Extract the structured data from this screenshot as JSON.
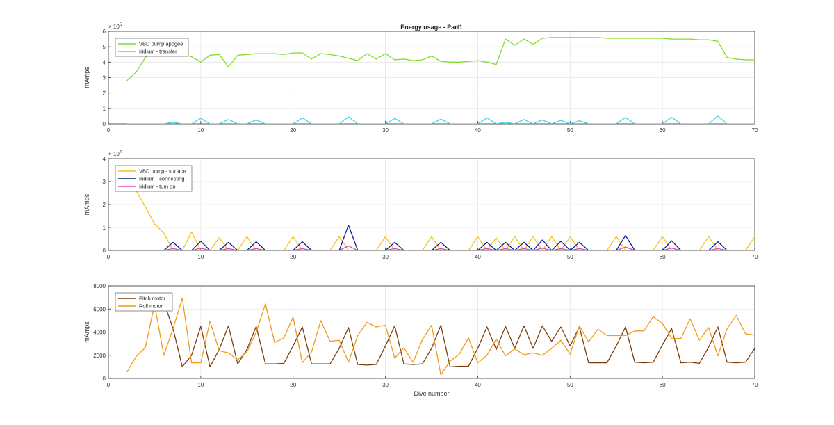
{
  "chart_data": [
    {
      "type": "line",
      "title": "Energy usage - Part1",
      "xlabel": "",
      "ylabel": "mAmps",
      "xlim": [
        0,
        70
      ],
      "ylim": [
        0,
        6
      ],
      "y_multiplier": "× 10^5",
      "xticks": [
        0,
        10,
        20,
        30,
        40,
        50,
        60,
        70
      ],
      "yticks": [
        0,
        1,
        2,
        3,
        4,
        5,
        6
      ],
      "grid": true,
      "legend_position": "top-left",
      "series": [
        {
          "name": "VBD pump apogee",
          "color": "#7fdc2a",
          "x": [
            2,
            3,
            4,
            5,
            6,
            7,
            8,
            9,
            10,
            11,
            12,
            13,
            14,
            15,
            16,
            17,
            18,
            19,
            20,
            21,
            22,
            23,
            24,
            25,
            26,
            27,
            28,
            29,
            30,
            31,
            32,
            33,
            34,
            35,
            36,
            37,
            38,
            39,
            40,
            41,
            42,
            43,
            44,
            45,
            46,
            47,
            48,
            49,
            50,
            51,
            52,
            53,
            54,
            55,
            56,
            57,
            58,
            59,
            60,
            61,
            62,
            63,
            64,
            65,
            66,
            67,
            68,
            69,
            70
          ],
          "y": [
            2.8,
            3.35,
            4.3,
            5.0,
            4.8,
            4.7,
            4.55,
            4.35,
            4.0,
            4.45,
            4.5,
            3.7,
            4.45,
            4.5,
            4.55,
            4.55,
            4.55,
            4.5,
            4.6,
            4.6,
            4.2,
            4.55,
            4.5,
            4.4,
            4.25,
            4.1,
            4.55,
            4.2,
            4.55,
            4.15,
            4.2,
            4.1,
            4.15,
            4.4,
            4.05,
            4.0,
            4.0,
            4.05,
            4.1,
            4.0,
            3.85,
            5.5,
            5.1,
            5.5,
            5.15,
            5.55,
            5.6,
            5.6,
            5.6,
            5.6,
            5.6,
            5.6,
            5.55,
            5.55,
            5.55,
            5.55,
            5.55,
            5.55,
            5.55,
            5.5,
            5.5,
            5.5,
            5.45,
            5.45,
            5.35,
            4.3,
            4.2,
            4.15,
            4.15
          ]
        },
        {
          "name": "Iridium - transfer",
          "color": "#3fd3e6",
          "x": [
            2,
            6,
            7,
            8,
            9,
            10,
            11,
            12,
            13,
            14,
            15,
            16,
            17,
            20,
            21,
            22,
            25,
            26,
            27,
            30,
            31,
            32,
            35,
            36,
            37,
            40,
            41,
            42,
            43,
            44,
            45,
            46,
            47,
            48,
            49,
            50,
            51,
            52,
            55,
            56,
            57,
            60,
            61,
            62,
            65,
            66,
            67,
            70
          ],
          "y": [
            0,
            0,
            0.1,
            0,
            0,
            0.35,
            0,
            0,
            0.28,
            0,
            0,
            0.25,
            0,
            0,
            0.38,
            0,
            0,
            0.45,
            0,
            0,
            0.35,
            0,
            0,
            0.3,
            0,
            0,
            0.38,
            0,
            0.1,
            0,
            0.28,
            0,
            0.25,
            0,
            0.22,
            0,
            0.2,
            0,
            0,
            0.4,
            0,
            0,
            0.42,
            0,
            0,
            0.5,
            0,
            0
          ]
        }
      ]
    },
    {
      "type": "line",
      "title": "",
      "xlabel": "",
      "ylabel": "mAmps",
      "xlim": [
        0,
        70
      ],
      "ylim": [
        0,
        4
      ],
      "y_multiplier": "× 10^4",
      "xticks": [
        0,
        10,
        20,
        30,
        40,
        50,
        60,
        70
      ],
      "yticks": [
        0,
        1,
        2,
        3,
        4
      ],
      "grid": true,
      "legend_position": "top-left",
      "series": [
        {
          "name": "VBD pump - surface",
          "color": "#f2c31a",
          "x": [
            2,
            3,
            4,
            5,
            6,
            7,
            8,
            9,
            10,
            11,
            12,
            13,
            14,
            15,
            16,
            17,
            18,
            19,
            20,
            21,
            22,
            23,
            24,
            25,
            26,
            27,
            28,
            29,
            30,
            31,
            32,
            33,
            34,
            35,
            36,
            37,
            38,
            39,
            40,
            41,
            42,
            43,
            44,
            45,
            46,
            47,
            48,
            49,
            50,
            51,
            52,
            53,
            54,
            55,
            56,
            57,
            58,
            59,
            60,
            61,
            62,
            63,
            64,
            65,
            66,
            67,
            68,
            69,
            70
          ],
          "y": [
            3.3,
            2.6,
            1.9,
            1.15,
            0.75,
            0,
            0,
            0.8,
            0,
            0,
            0.55,
            0,
            0,
            0.6,
            0,
            0,
            0,
            0,
            0.6,
            0,
            0,
            0,
            0,
            0.6,
            0,
            0,
            0,
            0,
            0.6,
            0,
            0,
            0,
            0,
            0.6,
            0,
            0,
            0,
            0,
            0.6,
            0,
            0.55,
            0,
            0.6,
            0,
            0.6,
            0,
            0.6,
            0,
            0.6,
            0,
            0,
            0,
            0,
            0.6,
            0,
            0,
            0,
            0,
            0.6,
            0,
            0,
            0,
            0,
            0.6,
            0,
            0,
            0,
            0,
            0.6
          ]
        },
        {
          "name": "Iridium - connecting",
          "color": "#0a1e96",
          "x": [
            2,
            6,
            7,
            8,
            9,
            10,
            11,
            12,
            13,
            14,
            15,
            16,
            17,
            20,
            21,
            22,
            25,
            26,
            27,
            30,
            31,
            32,
            35,
            36,
            37,
            40,
            41,
            42,
            43,
            44,
            45,
            46,
            47,
            48,
            49,
            50,
            51,
            52,
            55,
            56,
            57,
            60,
            61,
            62,
            65,
            66,
            67,
            70
          ],
          "y": [
            0,
            0,
            0.35,
            0,
            0,
            0.4,
            0,
            0,
            0.35,
            0,
            0,
            0.38,
            0,
            0,
            0.38,
            0,
            0,
            1.1,
            0,
            0,
            0.35,
            0,
            0,
            0.35,
            0,
            0,
            0.35,
            0,
            0.35,
            0,
            0.35,
            0,
            0.45,
            0,
            0.4,
            0,
            0.35,
            0,
            0,
            0.65,
            0,
            0,
            0.42,
            0,
            0,
            0.38,
            0,
            0
          ]
        },
        {
          "name": "Iridium - turn on",
          "color": "#e040b0",
          "x": [
            2,
            6,
            7,
            8,
            9,
            10,
            11,
            12,
            13,
            14,
            15,
            16,
            17,
            20,
            21,
            22,
            25,
            26,
            27,
            30,
            31,
            32,
            35,
            36,
            37,
            40,
            41,
            42,
            43,
            44,
            45,
            46,
            47,
            48,
            49,
            50,
            51,
            52,
            55,
            56,
            57,
            60,
            61,
            62,
            65,
            66,
            67,
            70
          ],
          "y": [
            0,
            0,
            0.08,
            0,
            0,
            0.1,
            0,
            0,
            0.08,
            0,
            0,
            0.08,
            0,
            0,
            0.08,
            0,
            0,
            0.2,
            0,
            0,
            0.08,
            0,
            0,
            0.08,
            0,
            0,
            0.08,
            0,
            0.08,
            0,
            0.08,
            0,
            0.1,
            0,
            0.08,
            0,
            0.08,
            0,
            0,
            0.15,
            0,
            0,
            0.1,
            0,
            0,
            0.08,
            0,
            0
          ]
        }
      ]
    },
    {
      "type": "line",
      "title": "",
      "xlabel": "Dive number",
      "ylabel": "mAmps",
      "xlim": [
        0,
        70
      ],
      "ylim": [
        0,
        8000
      ],
      "y_multiplier": "",
      "xticks": [
        0,
        10,
        20,
        30,
        40,
        50,
        60,
        70
      ],
      "yticks": [
        0,
        2000,
        4000,
        6000,
        8000
      ],
      "grid": true,
      "legend_position": "top-left",
      "series": [
        {
          "name": "Pitch motor",
          "color": "#7a3d0a",
          "x": [
            2,
            3,
            4,
            5,
            6,
            7,
            8,
            9,
            10,
            11,
            12,
            13,
            14,
            15,
            16,
            17,
            18,
            19,
            20,
            21,
            22,
            23,
            24,
            25,
            26,
            27,
            28,
            29,
            30,
            31,
            32,
            33,
            34,
            35,
            36,
            37,
            38,
            39,
            40,
            41,
            42,
            43,
            44,
            45,
            46,
            47,
            48,
            49,
            50,
            51,
            52,
            53,
            54,
            55,
            56,
            57,
            58,
            59,
            60,
            61,
            62,
            63,
            64,
            65,
            66,
            67,
            68,
            69,
            70
          ],
          "y": [
            null,
            null,
            null,
            6400,
            6600,
            4300,
            1000,
            2000,
            4500,
            1000,
            2500,
            4550,
            1250,
            2500,
            4500,
            1250,
            1250,
            1300,
            2800,
            4450,
            1250,
            1250,
            1250,
            2600,
            4400,
            1200,
            1150,
            1200,
            2800,
            4550,
            1250,
            1200,
            1250,
            2600,
            4600,
            1000,
            1050,
            1050,
            2600,
            4450,
            2500,
            4500,
            2600,
            4550,
            2600,
            4550,
            3200,
            4450,
            2800,
            4450,
            1350,
            1350,
            1350,
            2800,
            4450,
            1400,
            1350,
            1400,
            2900,
            4300,
            1350,
            1400,
            1300,
            2700,
            4450,
            1400,
            1350,
            1400,
            2600
          ]
        },
        {
          "name": "Roll motor",
          "color": "#f29a1a",
          "x": [
            2,
            3,
            4,
            5,
            6,
            7,
            8,
            9,
            10,
            11,
            12,
            13,
            14,
            15,
            16,
            17,
            18,
            19,
            20,
            21,
            22,
            23,
            24,
            25,
            26,
            27,
            28,
            29,
            30,
            31,
            32,
            33,
            34,
            35,
            36,
            37,
            38,
            39,
            40,
            41,
            42,
            43,
            44,
            45,
            46,
            47,
            48,
            49,
            50,
            51,
            52,
            53,
            54,
            55,
            56,
            57,
            58,
            59,
            60,
            61,
            62,
            63,
            64,
            65,
            66,
            67,
            68,
            69,
            70
          ],
          "y": [
            550,
            1900,
            2650,
            6400,
            2000,
            4300,
            6950,
            1350,
            1350,
            4950,
            2400,
            2200,
            1600,
            2300,
            4000,
            6450,
            3100,
            3500,
            5300,
            1350,
            2300,
            5000,
            3200,
            3300,
            1400,
            3700,
            4850,
            4450,
            4600,
            1750,
            2650,
            1400,
            3350,
            4600,
            300,
            1500,
            2100,
            3500,
            1350,
            2000,
            3400,
            1950,
            2550,
            2050,
            2200,
            2000,
            2600,
            3300,
            2100,
            4550,
            3150,
            4250,
            3700,
            3700,
            3700,
            4100,
            4100,
            5350,
            4750,
            3450,
            3450,
            5150,
            3300,
            4400,
            1950,
            4300,
            5450,
            3850,
            3750
          ]
        }
      ]
    }
  ]
}
